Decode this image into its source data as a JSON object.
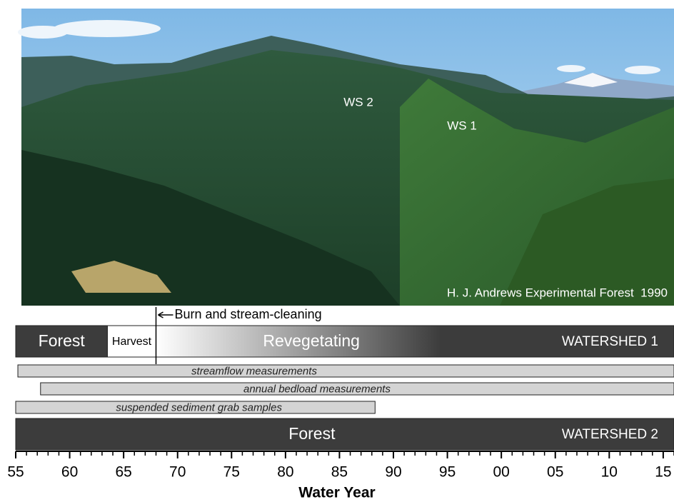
{
  "chart_data": {
    "type": "timeline",
    "photo_labels": [
      "WS 2",
      "WS 1",
      "H. J. Andrews Experimental Forest  1990"
    ],
    "annotation": {
      "text": "Burn and stream-cleaning",
      "x": 1968
    },
    "watersheds": [
      {
        "name": "WATERSHED 1",
        "segments": [
          {
            "label": "Forest",
            "start": 1955,
            "end": 1963.5,
            "color": "#3c3c3c",
            "text_color": "#ffffff"
          },
          {
            "label": "Harvest",
            "start": 1963.5,
            "end": 1968,
            "color": "#ffffff",
            "text_color": "#000000"
          },
          {
            "label": "Revegetating",
            "start": 1968,
            "end": 2016,
            "color": "#3c3c3c",
            "text_color": "#ffffff",
            "gradient": true
          }
        ]
      },
      {
        "name": "WATERSHED 2",
        "segments": [
          {
            "label": "Forest",
            "start": 1955,
            "end": 2016,
            "color": "#3c3c3c",
            "text_color": "#ffffff"
          }
        ]
      }
    ],
    "measurements": [
      {
        "label": "streamflow measurements",
        "start": 1955.2,
        "end": 2016,
        "color": "#d4d4d4"
      },
      {
        "label": "annual bedload measurements",
        "start": 1957.3,
        "end": 2016,
        "color": "#d4d4d4"
      },
      {
        "label": "suspended sediment grab samples",
        "start": 1955,
        "end": 1988.3,
        "color": "#d4d4d4"
      }
    ],
    "x_label": "Water Year",
    "xlim": [
      1955,
      2016
    ],
    "xticks": [
      {
        "value": 1955,
        "label": "55"
      },
      {
        "value": 1960,
        "label": "60"
      },
      {
        "value": 1965,
        "label": "65"
      },
      {
        "value": 1970,
        "label": "70"
      },
      {
        "value": 1975,
        "label": "75"
      },
      {
        "value": 1980,
        "label": "80"
      },
      {
        "value": 1985,
        "label": "85"
      },
      {
        "value": 1990,
        "label": "90"
      },
      {
        "value": 1995,
        "label": "95"
      },
      {
        "value": 2000,
        "label": "00"
      },
      {
        "value": 2005,
        "label": "05"
      },
      {
        "value": 2010,
        "label": "10"
      },
      {
        "value": 2015,
        "label": "15"
      }
    ],
    "minor_xticks": [
      1956,
      1957,
      1958,
      1959,
      1961,
      1962,
      1963,
      1964,
      1966,
      1967,
      1968,
      1969,
      1971,
      1972,
      1973,
      1974,
      1976,
      1977,
      1978,
      1979,
      1981,
      1982,
      1983,
      1984,
      1986,
      1987,
      1988,
      1989,
      1991,
      1992,
      1993,
      1994,
      1996,
      1997,
      1998,
      1999,
      2001,
      2002,
      2003,
      2004,
      2006,
      2007,
      2008,
      2009,
      2011,
      2012,
      2013,
      2014,
      2016
    ]
  }
}
